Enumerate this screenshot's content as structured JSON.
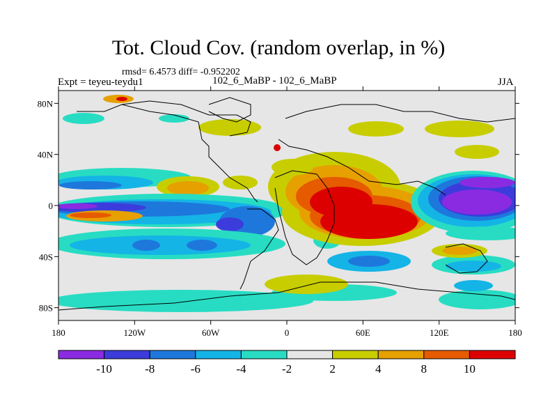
{
  "title": "Tot. Cloud Cov. (random overlap, in %)",
  "stats": "rmsd= 6.4573 diff= -0.952202",
  "left_label": "Expt = teyeu-teydu1",
  "center_label": "102_6_MaBP - 102_6_MaBP",
  "right_label": "JJA",
  "map": {
    "x_ticks": [
      {
        "lon": -180,
        "label": "180"
      },
      {
        "lon": -120,
        "label": "120W"
      },
      {
        "lon": -60,
        "label": "60W"
      },
      {
        "lon": 0,
        "label": "0"
      },
      {
        "lon": 60,
        "label": "60E"
      },
      {
        "lon": 120,
        "label": "120E"
      },
      {
        "lon": 180,
        "label": "180"
      }
    ],
    "y_ticks": [
      {
        "lat": 80,
        "label": "80N"
      },
      {
        "lat": 40,
        "label": "40N"
      },
      {
        "lat": 0,
        "label": "0"
      },
      {
        "lat": -40,
        "label": "40S"
      },
      {
        "lat": -80,
        "label": "80S"
      }
    ]
  },
  "colorbar": {
    "colors": [
      "#8a2be2",
      "#3c3cdc",
      "#1e78dc",
      "#14b4e6",
      "#28dcc3",
      "#e6e6e6",
      "#c8cd00",
      "#e6a000",
      "#e65a00",
      "#dc0000"
    ],
    "labels": [
      {
        "value": -10,
        "text": "-10"
      },
      {
        "value": -8,
        "text": "-8"
      },
      {
        "value": -6,
        "text": "-6"
      },
      {
        "value": -4,
        "text": "-4"
      },
      {
        "value": -2,
        "text": "-2"
      },
      {
        "value": 2,
        "text": "2"
      },
      {
        "value": 4,
        "text": "4"
      },
      {
        "value": 8,
        "text": "8"
      },
      {
        "value": 10,
        "text": "10"
      }
    ]
  }
}
